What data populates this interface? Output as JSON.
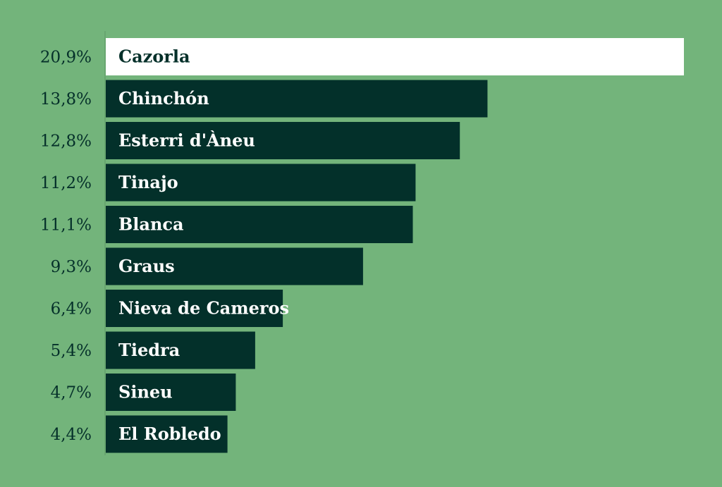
{
  "colors": {
    "background": "#73b47b",
    "bar": "#03302a",
    "highlight_bar": "#ffffff",
    "bar_text": "#ffffff",
    "highlight_text": "#05302a",
    "value_text": "#05302a",
    "axis": "#5c9964"
  },
  "chart_data": {
    "type": "bar",
    "orientation": "horizontal",
    "categories": [
      "Cazorla",
      "Chinchón",
      "Esterri d'Àneu",
      "Tinajo",
      "Blanca",
      "Graus",
      "Nieva de Cameros",
      "Tiedra",
      "Sineu",
      "El Robledo"
    ],
    "values": [
      20.9,
      13.8,
      12.8,
      11.2,
      11.1,
      9.3,
      6.4,
      5.4,
      4.7,
      4.4
    ],
    "value_labels": [
      "20,9%",
      "13,8%",
      "12,8%",
      "11,2%",
      "11,1%",
      "9,3%",
      "6,4%",
      "5,4%",
      "4,7%",
      "4,4%"
    ],
    "highlight_index": 0,
    "xlim": [
      0,
      20.9
    ],
    "title": "",
    "xlabel": "",
    "ylabel": "",
    "grid": false,
    "legend": "none"
  }
}
